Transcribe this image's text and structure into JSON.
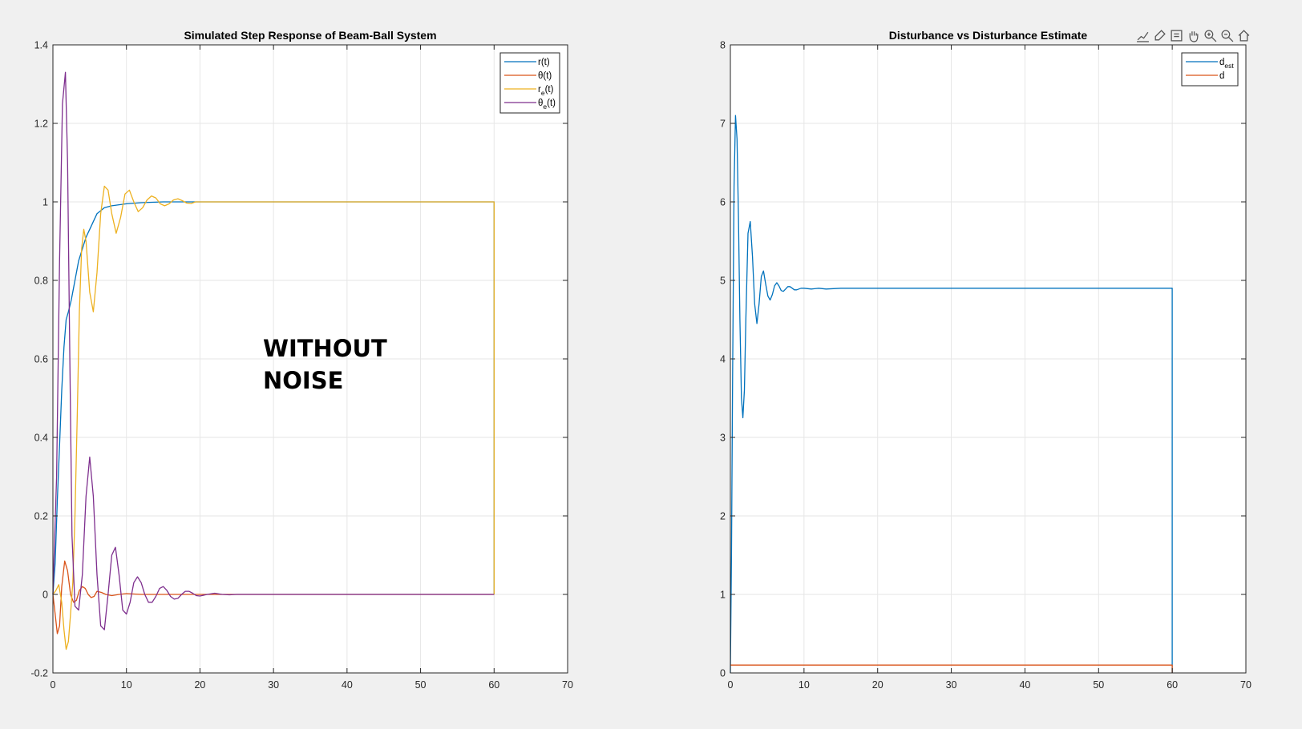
{
  "toolbar": {
    "icons": [
      "export-icon",
      "brush-icon",
      "datatip-icon",
      "pan-icon",
      "zoom-in-icon",
      "zoom-out-icon",
      "home-icon"
    ]
  },
  "annotation": {
    "line1": "WITHOUT",
    "line2": "NOISE"
  },
  "chart_data": [
    {
      "type": "line",
      "title": "Simulated Step Response of Beam-Ball System",
      "xlabel": "",
      "ylabel": "",
      "xlim": [
        0,
        70
      ],
      "ylim": [
        -0.2,
        1.4
      ],
      "xticks": [
        0,
        10,
        20,
        30,
        40,
        50,
        60,
        70
      ],
      "yticks": [
        -0.2,
        0,
        0.2,
        0.4,
        0.6,
        0.8,
        1,
        1.2,
        1.4
      ],
      "grid": true,
      "legend_position": "top-right",
      "series": [
        {
          "name": "r(t)",
          "label_base": "r",
          "label_sub": "",
          "color": "#0072BD",
          "x": [
            0,
            0.3,
            0.6,
            0.9,
            1.2,
            1.5,
            1.8,
            2.1,
            2.5,
            3.0,
            3.5,
            4.0,
            4.5,
            5.0,
            6.0,
            7.0,
            8.0,
            10.0,
            12.0,
            15.0,
            20.0,
            30.0,
            45.0,
            60.0,
            60.0
          ],
          "y": [
            0,
            0.08,
            0.24,
            0.38,
            0.52,
            0.63,
            0.7,
            0.72,
            0.75,
            0.8,
            0.85,
            0.88,
            0.91,
            0.93,
            0.97,
            0.985,
            0.99,
            0.995,
            0.998,
            1.0,
            1.0,
            1.0,
            1.0,
            1.0,
            0
          ]
        },
        {
          "name": "θ(t)",
          "label_base": "θ",
          "label_sub": "",
          "color": "#D95319",
          "x": [
            0,
            0.3,
            0.6,
            0.9,
            1.2,
            1.6,
            2.0,
            2.4,
            2.8,
            3.2,
            3.6,
            4.0,
            4.4,
            4.8,
            5.2,
            5.6,
            6.0,
            6.6,
            7.2,
            8.0,
            9.0,
            10.0,
            12.0,
            15.0,
            20.0,
            60.0
          ],
          "y": [
            0,
            -0.05,
            -0.1,
            -0.08,
            0.02,
            0.085,
            0.06,
            0.0,
            -0.02,
            -0.015,
            0.01,
            0.02,
            0.015,
            0.0,
            -0.008,
            -0.005,
            0.008,
            0.005,
            0.0,
            -0.003,
            0.0,
            0.002,
            0.0,
            0.0,
            0.0,
            0.0
          ]
        },
        {
          "name": "re(t)",
          "label_base": "r",
          "label_sub": "e",
          "color": "#EDB120",
          "x": [
            0,
            0.4,
            0.8,
            1.2,
            1.5,
            1.8,
            2.1,
            2.4,
            2.7,
            3.0,
            3.3,
            3.6,
            3.9,
            4.2,
            4.5,
            5.0,
            5.5,
            6.0,
            6.5,
            7.0,
            7.5,
            8.0,
            8.6,
            9.2,
            9.8,
            10.4,
            11.0,
            11.6,
            12.2,
            12.8,
            13.4,
            14.0,
            14.6,
            15.2,
            15.8,
            16.4,
            17.0,
            17.6,
            18.2,
            18.8,
            19.4,
            20.0,
            22.0,
            25.0,
            30.0,
            60.0,
            60.0
          ],
          "y": [
            0,
            0.01,
            0.025,
            -0.02,
            -0.09,
            -0.14,
            -0.12,
            -0.05,
            0.03,
            0.2,
            0.45,
            0.72,
            0.88,
            0.93,
            0.9,
            0.77,
            0.72,
            0.82,
            0.97,
            1.04,
            1.03,
            0.97,
            0.92,
            0.96,
            1.02,
            1.03,
            1.0,
            0.975,
            0.985,
            1.005,
            1.015,
            1.01,
            0.995,
            0.99,
            0.995,
            1.005,
            1.008,
            1.003,
            0.997,
            0.996,
            1.0,
            1.0,
            1.0,
            1.0,
            1.0,
            1.0,
            0
          ]
        },
        {
          "name": "θe(t)",
          "label_base": "θ",
          "label_sub": "e",
          "color": "#7E2F8E",
          "x": [
            0,
            0.5,
            0.9,
            1.3,
            1.7,
            2.0,
            2.3,
            2.6,
            3.0,
            3.5,
            4.0,
            4.5,
            5.0,
            5.5,
            6.0,
            6.5,
            7.0,
            7.5,
            8.0,
            8.5,
            9.0,
            9.5,
            10.0,
            10.5,
            11.0,
            11.5,
            12.0,
            12.5,
            13.0,
            13.5,
            14.0,
            14.5,
            15.0,
            15.5,
            16.0,
            16.5,
            17.0,
            17.5,
            18.0,
            18.5,
            19.0,
            19.5,
            20.0,
            21.0,
            22.0,
            23.0,
            24.0,
            25.0,
            30.0,
            60.0
          ],
          "y": [
            0,
            0.3,
            0.85,
            1.25,
            1.33,
            1.1,
            0.6,
            0.15,
            -0.03,
            -0.04,
            0.05,
            0.25,
            0.35,
            0.25,
            0.05,
            -0.08,
            -0.09,
            0.0,
            0.1,
            0.12,
            0.05,
            -0.04,
            -0.05,
            -0.02,
            0.03,
            0.045,
            0.03,
            0.0,
            -0.02,
            -0.02,
            -0.005,
            0.015,
            0.02,
            0.01,
            -0.005,
            -0.012,
            -0.01,
            0.0,
            0.008,
            0.008,
            0.003,
            -0.003,
            -0.004,
            0.0,
            0.003,
            0.0,
            -0.001,
            0.0,
            0.0,
            0.0
          ]
        }
      ]
    },
    {
      "type": "line",
      "title": "Disturbance vs Disturbance Estimate",
      "xlabel": "",
      "ylabel": "",
      "xlim": [
        0,
        70
      ],
      "ylim": [
        0,
        8
      ],
      "xticks": [
        0,
        10,
        20,
        30,
        40,
        50,
        60,
        70
      ],
      "yticks": [
        0,
        1,
        2,
        3,
        4,
        5,
        6,
        7,
        8
      ],
      "grid": true,
      "legend_position": "top-right",
      "series": [
        {
          "name": "dest",
          "label_base": "d",
          "label_sub": "est",
          "color": "#0072BD",
          "x": [
            0,
            0.15,
            0.3,
            0.5,
            0.7,
            0.9,
            1.1,
            1.3,
            1.5,
            1.7,
            1.9,
            2.1,
            2.4,
            2.7,
            3.0,
            3.3,
            3.6,
            3.9,
            4.2,
            4.5,
            4.8,
            5.1,
            5.4,
            5.7,
            6.0,
            6.3,
            6.6,
            6.9,
            7.2,
            7.5,
            7.8,
            8.1,
            8.4,
            8.7,
            9.0,
            9.3,
            9.6,
            10.0,
            11.0,
            12.0,
            13.0,
            15.0,
            20.0,
            30.0,
            60.0,
            60.0
          ],
          "y": [
            0,
            1.5,
            3.8,
            6.2,
            7.1,
            6.8,
            5.8,
            4.5,
            3.5,
            3.25,
            3.6,
            4.5,
            5.6,
            5.75,
            5.3,
            4.7,
            4.45,
            4.7,
            5.05,
            5.12,
            4.95,
            4.8,
            4.75,
            4.82,
            4.93,
            4.97,
            4.93,
            4.87,
            4.86,
            4.89,
            4.92,
            4.92,
            4.9,
            4.88,
            4.88,
            4.89,
            4.9,
            4.9,
            4.89,
            4.9,
            4.89,
            4.9,
            4.9,
            4.9,
            4.9,
            0
          ]
        },
        {
          "name": "d",
          "label_base": "d",
          "label_sub": "",
          "color": "#D95319",
          "x": [
            0,
            60,
            60
          ],
          "y": [
            0.1,
            0.1,
            0
          ]
        }
      ]
    }
  ]
}
